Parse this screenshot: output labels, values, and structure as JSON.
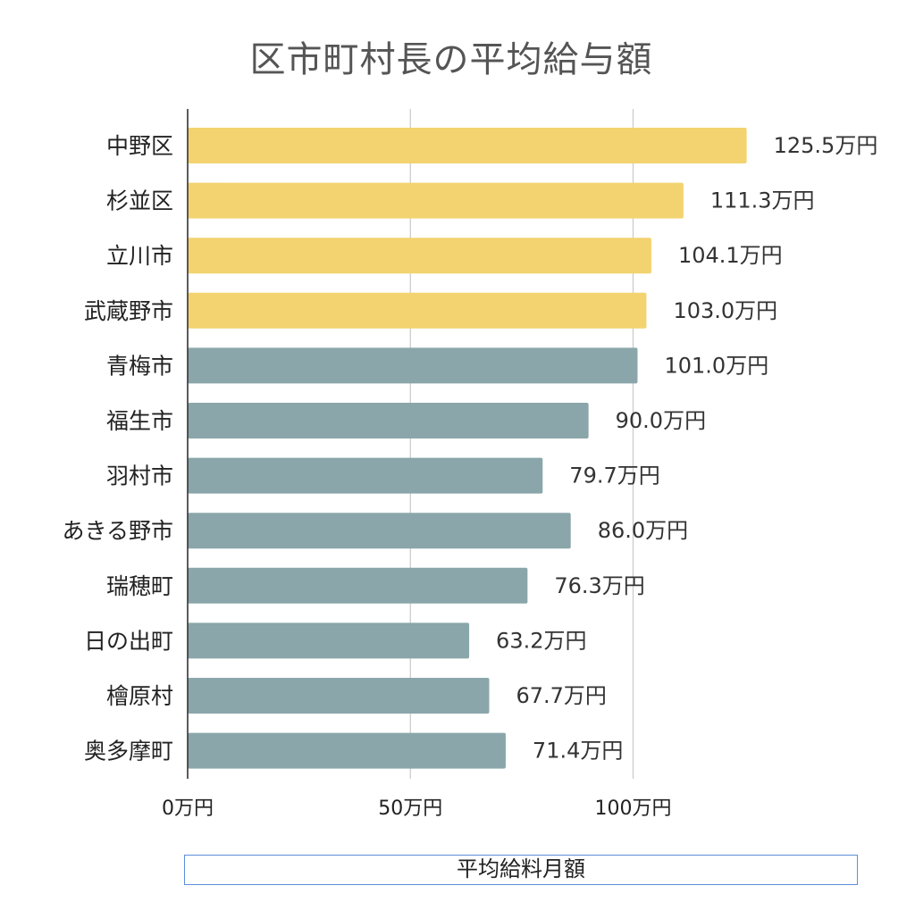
{
  "chart_data": {
    "type": "bar",
    "orientation": "horizontal",
    "title": "区市町村長の平均給与額",
    "xlabel": "平均給料月額",
    "ylabel": "",
    "xlim": [
      0,
      130
    ],
    "x_ticks": [
      0,
      50,
      100
    ],
    "x_tick_labels": [
      "0万円",
      "50万円",
      "100万円"
    ],
    "grid": true,
    "value_suffix": "万円",
    "categories": [
      "中野区",
      "杉並区",
      "立川市",
      "武蔵野市",
      "青梅市",
      "福生市",
      "羽村市",
      "あきる野市",
      "瑞穂町",
      "日の出町",
      "檜原村",
      "奥多摩町"
    ],
    "values": [
      125.5,
      111.3,
      104.1,
      103.0,
      101.0,
      90.0,
      79.7,
      86.0,
      76.3,
      63.2,
      67.7,
      71.4
    ],
    "value_labels": [
      "125.5万円",
      "111.3万円",
      "104.1万円",
      "103.0万円",
      "101.0万円",
      "90.0万円",
      "79.7万円",
      "86.0万円",
      "76.3万円",
      "63.2万円",
      "67.7万円",
      "71.4万円"
    ],
    "bar_colors": [
      "#f2d36f",
      "#f2d36f",
      "#f2d36f",
      "#f2d36f",
      "#8aa6aa",
      "#8aa6aa",
      "#8aa6aa",
      "#8aa6aa",
      "#8aa6aa",
      "#8aa6aa",
      "#8aa6aa",
      "#8aa6aa"
    ],
    "colors": {
      "highlight": "#f2d36f",
      "normal": "#8aa6aa",
      "gridline": "#c8c8c8",
      "axis": "#333333"
    }
  }
}
